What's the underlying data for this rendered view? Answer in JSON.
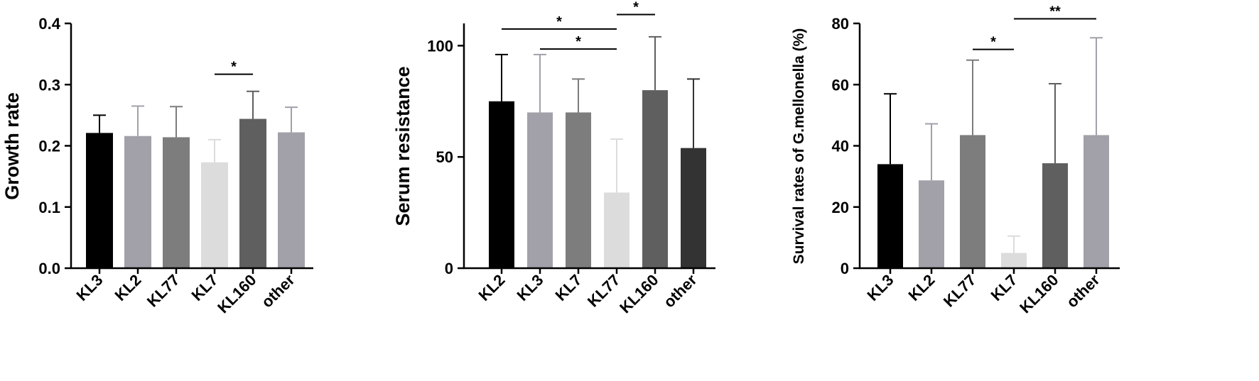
{
  "chart_data": [
    {
      "type": "bar",
      "ylabel": "Growth rate",
      "ylim": [
        0,
        0.4
      ],
      "yticks": [
        "0.0",
        "0.1",
        "0.2",
        "0.3",
        "0.4"
      ],
      "categories": [
        "KL3",
        "KL2",
        "KL77",
        "KL7",
        "KL160",
        "other"
      ],
      "values": [
        0.221,
        0.216,
        0.214,
        0.173,
        0.244,
        0.222
      ],
      "errors": [
        0.029,
        0.049,
        0.05,
        0.037,
        0.045,
        0.041
      ],
      "colors": [
        "#000000",
        "#a2a1aa",
        "#7d7d7d",
        "#dcdcdc",
        "#5f5f5f",
        "#a2a1aa"
      ],
      "significance": [
        {
          "from": 3,
          "to": 4,
          "label": "*",
          "y": 0.317
        }
      ]
    },
    {
      "type": "bar",
      "ylabel": "Serum resistance",
      "ylim": [
        0,
        110
      ],
      "yticks": [
        "0",
        "50",
        "100"
      ],
      "categories": [
        "KL2",
        "KL3",
        "KL7",
        "KL77",
        "KL160",
        "other"
      ],
      "values": [
        75,
        70,
        70,
        34,
        80,
        54
      ],
      "errors": [
        21,
        26,
        15,
        24,
        24,
        31
      ],
      "colors": [
        "#000000",
        "#a2a1aa",
        "#7d7d7d",
        "#dcdcdc",
        "#5f5f5f",
        "#333333"
      ],
      "significance": [
        {
          "from": 0,
          "to": 3,
          "label": "*",
          "y": 107.5
        },
        {
          "from": 1,
          "to": 3,
          "label": "*",
          "y": 98.5
        },
        {
          "from": 3,
          "to": 4,
          "label": "*",
          "y": 114
        }
      ]
    },
    {
      "type": "bar",
      "ylabel": "Survival rates of G.mellonella (%)",
      "ylim": [
        0,
        80
      ],
      "yticks": [
        "0",
        "20",
        "40",
        "60",
        "80"
      ],
      "categories": [
        "KL3",
        "KL2",
        "KL77",
        "KL7",
        "KL160",
        "other"
      ],
      "values": [
        34,
        28.7,
        43.5,
        5,
        34.3,
        43.5
      ],
      "errors": [
        23,
        18.5,
        24.5,
        5.5,
        26,
        31.8
      ],
      "colors": [
        "#000000",
        "#a2a1aa",
        "#7d7d7d",
        "#dcdcdc",
        "#5f5f5f",
        "#a2a1aa"
      ],
      "significance": [
        {
          "from": 2,
          "to": 3,
          "label": "*",
          "y": 71.5
        },
        {
          "from": 3,
          "to": 5,
          "label": "**",
          "y": 81.5
        }
      ]
    }
  ]
}
